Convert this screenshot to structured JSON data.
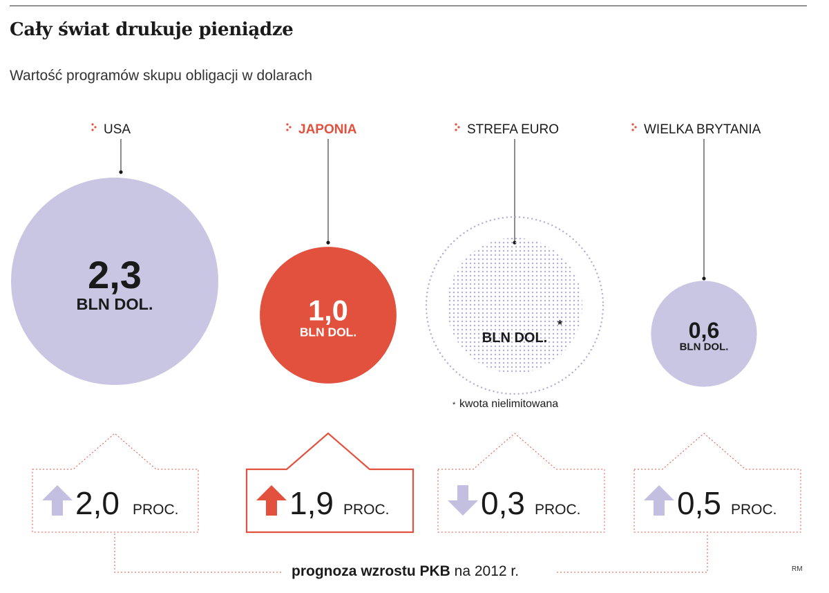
{
  "title": "Cały świat drukuje pieniądze",
  "subtitle": "Wartość programów skupu obligacji w dolarach",
  "colors": {
    "lavender": "#c9c6e3",
    "red": "#e2513e",
    "dark": "#1a1a1a",
    "dotted": "#b3afd6",
    "arrow_lavender": "#c2bfe0"
  },
  "chart_data": {
    "type": "bubble",
    "title": "Cały świat drukuje pieniądze",
    "subtitle": "Wartość programów skupu obligacji w dolarach",
    "unit": "BLN DOL.",
    "categories": [
      "USA",
      "JAPONIA",
      "STREFA EURO",
      "WIELKA BRYTANIA"
    ],
    "values": [
      2.3,
      1.0,
      null,
      0.6
    ],
    "value_labels": [
      "2,3",
      "1,0",
      "",
      "0,6"
    ],
    "highlighted": "JAPONIA",
    "note_marker": "*",
    "note": "kwota nielimitowana",
    "forecast": {
      "label_bold": "prognoza wzrostu PKB",
      "label_rest": "na 2012 r.",
      "unit": "PROC.",
      "values": [
        2.0,
        1.9,
        -0.3,
        0.5
      ],
      "value_labels": [
        "2,0",
        "1,9",
        "0,3",
        "0,5"
      ],
      "directions": [
        "up",
        "up",
        "down",
        "up"
      ]
    }
  },
  "credit": "RM"
}
